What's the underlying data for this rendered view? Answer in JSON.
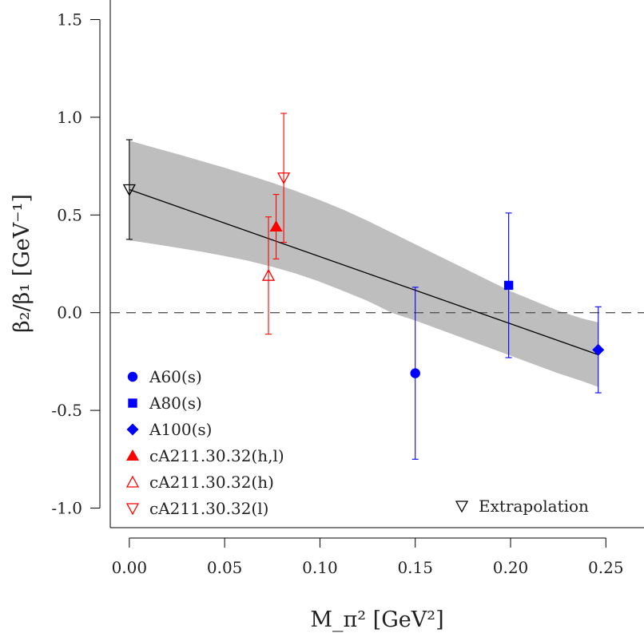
{
  "chart_data": {
    "type": "scatter",
    "xlabel": "M_π² [GeV²]",
    "ylabel": "β₂/β₁ [GeV⁻¹]",
    "xlim": [
      -0.01,
      0.27
    ],
    "ylim": [
      -1.1,
      1.6
    ],
    "x_ticks": [
      "0.00",
      "0.05",
      "0.10",
      "0.15",
      "0.20",
      "0.25"
    ],
    "y_ticks": [
      "-1.0",
      "-0.5",
      "0.0",
      "0.5",
      "1.0",
      "1.5"
    ],
    "x_tick_values": [
      0.0,
      0.05,
      0.1,
      0.15,
      0.2,
      0.25
    ],
    "y_tick_values": [
      -1.0,
      -0.5,
      0.0,
      0.5,
      1.0,
      1.5
    ],
    "zero_line": 0.0,
    "fit": {
      "x": [
        0.0,
        0.0125,
        0.025,
        0.0375,
        0.05,
        0.0625,
        0.075,
        0.0875,
        0.1,
        0.1125,
        0.125,
        0.1375,
        0.15,
        0.1625,
        0.175,
        0.1875,
        0.2,
        0.2125,
        0.225,
        0.2375,
        0.246
      ],
      "upper": [
        0.88,
        0.846,
        0.812,
        0.777,
        0.742,
        0.704,
        0.665,
        0.622,
        0.576,
        0.526,
        0.47,
        0.41,
        0.35,
        0.29,
        0.23,
        0.17,
        0.11,
        0.06,
        0.01,
        -0.03,
        -0.05
      ],
      "lower": [
        0.37,
        0.352,
        0.333,
        0.313,
        0.29,
        0.265,
        0.235,
        0.2,
        0.158,
        0.11,
        0.06,
        0.0,
        -0.04,
        -0.085,
        -0.13,
        -0.175,
        -0.22,
        -0.265,
        -0.31,
        -0.35,
        -0.38
      ],
      "line_start": [
        0.0,
        0.63
      ],
      "line_end": [
        0.246,
        -0.215
      ]
    },
    "series": [
      {
        "name": "A60(s)",
        "marker": "circle",
        "color": "#0000ff",
        "points": [
          {
            "x": 0.15,
            "y": -0.31,
            "err": 0.44
          }
        ]
      },
      {
        "name": "A80(s)",
        "marker": "square",
        "color": "#0000ff",
        "points": [
          {
            "x": 0.199,
            "y": 0.14,
            "err": 0.37
          }
        ]
      },
      {
        "name": "A100(s)",
        "marker": "diamond",
        "color": "#0000ff",
        "points": [
          {
            "x": 0.246,
            "y": -0.19,
            "err": 0.22
          }
        ]
      },
      {
        "name": "cA211.30.32(h,l)",
        "marker": "triangle-up-filled",
        "color": "#ff0000",
        "points": [
          {
            "x": 0.077,
            "y": 0.44,
            "err": 0.165
          }
        ]
      },
      {
        "name": "cA211.30.32(h)",
        "marker": "triangle-up-open",
        "color": "#ff0000",
        "points": [
          {
            "x": 0.073,
            "y": 0.19,
            "err": 0.3
          }
        ]
      },
      {
        "name": "cA211.30.32(l)",
        "marker": "triangle-down-open",
        "color": "#ff0000",
        "points": [
          {
            "x": 0.081,
            "y": 0.69,
            "err": 0.33
          }
        ]
      },
      {
        "name": "Extrapolation",
        "marker": "triangle-down-open",
        "color": "#000000",
        "points": [
          {
            "x": 0.0,
            "y": 0.63,
            "err": 0.255
          }
        ]
      }
    ],
    "legend_placement": "bottom-left",
    "extrapolation_legend_placement": "bottom-right"
  }
}
